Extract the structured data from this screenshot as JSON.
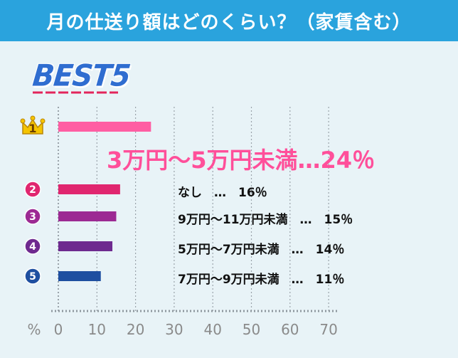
{
  "title": "月の仕送り額はどのくらい？（家賃含む）",
  "best_text": "BEST5",
  "chart_data": {
    "type": "bar",
    "orientation": "horizontal",
    "categories": [
      "3万円～5万円未満",
      "なし",
      "9万円～11万円未満",
      "5万円～7万円未満",
      "7万円～9万円未満"
    ],
    "values": [
      24,
      16,
      15,
      14,
      11
    ],
    "labels": [
      "3万円～5万円未満…24％",
      "なし　…　16％",
      "9万円～11万円未満　…　15％",
      "5万円～7万円未満　…　14％",
      "7万円～9万円未満　…　11％"
    ],
    "ranks": [
      "1",
      "2",
      "3",
      "4",
      "5"
    ],
    "bar_colors": [
      "#ff5ea3",
      "#e0266f",
      "#9c2a93",
      "#6e2a8f",
      "#1e4fa0"
    ],
    "badge_colors": [
      "#f5c400",
      "#e0266f",
      "#9c2a93",
      "#6e2a8f",
      "#1e4fa0"
    ],
    "rank1_icon": "crown-icon",
    "xunit": "%",
    "xticks": [
      0,
      10,
      20,
      30,
      40,
      50,
      60,
      70
    ],
    "xlim": [
      0,
      70
    ],
    "grid": true
  }
}
